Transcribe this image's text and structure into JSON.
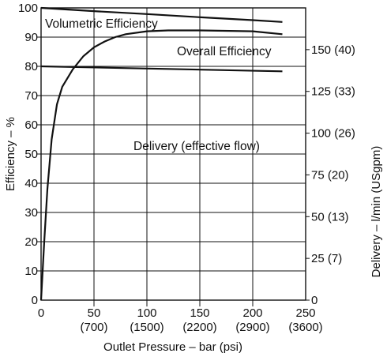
{
  "chart_data": {
    "type": "line",
    "x_label": "Outlet Pressure – bar (psi)",
    "y_left_label": "Efficiency – %",
    "y_right_label": "Delivery – l/min (USgpm)",
    "x_range": [
      0,
      250
    ],
    "y_left_range": [
      0,
      100
    ],
    "y_right_range": [
      0,
      175
    ],
    "grid": true,
    "x_ticks": [
      {
        "value": 0,
        "bar": "0",
        "psi": ""
      },
      {
        "value": 50,
        "bar": "50",
        "psi": "(700)"
      },
      {
        "value": 100,
        "bar": "100",
        "psi": "(1500)"
      },
      {
        "value": 150,
        "bar": "150",
        "psi": "(2200)"
      },
      {
        "value": 200,
        "bar": "200",
        "psi": "(2900)"
      },
      {
        "value": 250,
        "bar": "250",
        "psi": "(3600)"
      }
    ],
    "y_left_ticks": [
      "0",
      "10",
      "20",
      "30",
      "40",
      "50",
      "60",
      "70",
      "80",
      "90",
      "100"
    ],
    "y_right_ticks": [
      {
        "value": 0,
        "label": "0"
      },
      {
        "value": 25,
        "label": "25 (7)"
      },
      {
        "value": 50,
        "label": "50 (13)"
      },
      {
        "value": 75,
        "label": "75 (20)"
      },
      {
        "value": 100,
        "label": "100 (26)"
      },
      {
        "value": 125,
        "label": "125 (33)"
      },
      {
        "value": 150,
        "label": "150 (40)"
      }
    ],
    "series": [
      {
        "name": "Volumetric Efficiency",
        "axis": "left",
        "x": [
          0,
          50,
          100,
          150,
          200,
          228
        ],
        "y": [
          100,
          98.9,
          97.9,
          96.8,
          95.8,
          95.2
        ]
      },
      {
        "name": "Overall Efficiency",
        "axis": "left",
        "x": [
          0,
          3,
          6,
          10,
          15,
          20,
          30,
          40,
          50,
          60,
          70,
          80,
          100,
          120,
          150,
          200,
          228
        ],
        "y": [
          0,
          20,
          38,
          55,
          67,
          73,
          79,
          83.5,
          86.5,
          88.5,
          90,
          91,
          92,
          92.3,
          92.3,
          92,
          91
        ]
      },
      {
        "name": "Delivery (effective flow)",
        "axis": "right",
        "x": [
          0,
          228
        ],
        "y": [
          140,
          137
        ]
      }
    ]
  }
}
